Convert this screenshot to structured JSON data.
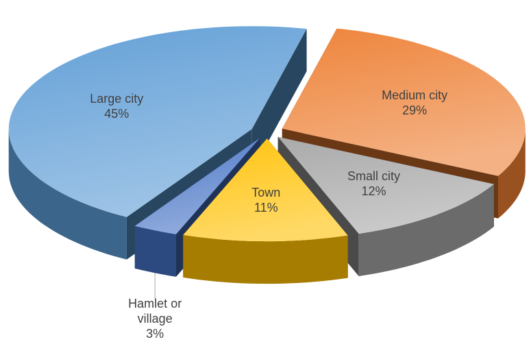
{
  "chart_data": {
    "type": "pie3d",
    "categories": [
      "Medium city",
      "Small city",
      "Town",
      "Hamlet or village",
      "Large city"
    ],
    "values": [
      29,
      12,
      11,
      3,
      45
    ],
    "value_labels": [
      "29%",
      "12%",
      "11%",
      "3%",
      "45%"
    ],
    "colors": [
      "#ed7d31",
      "#a5a5a5",
      "#ffc000",
      "#4472c4",
      "#5b9bd5"
    ]
  }
}
